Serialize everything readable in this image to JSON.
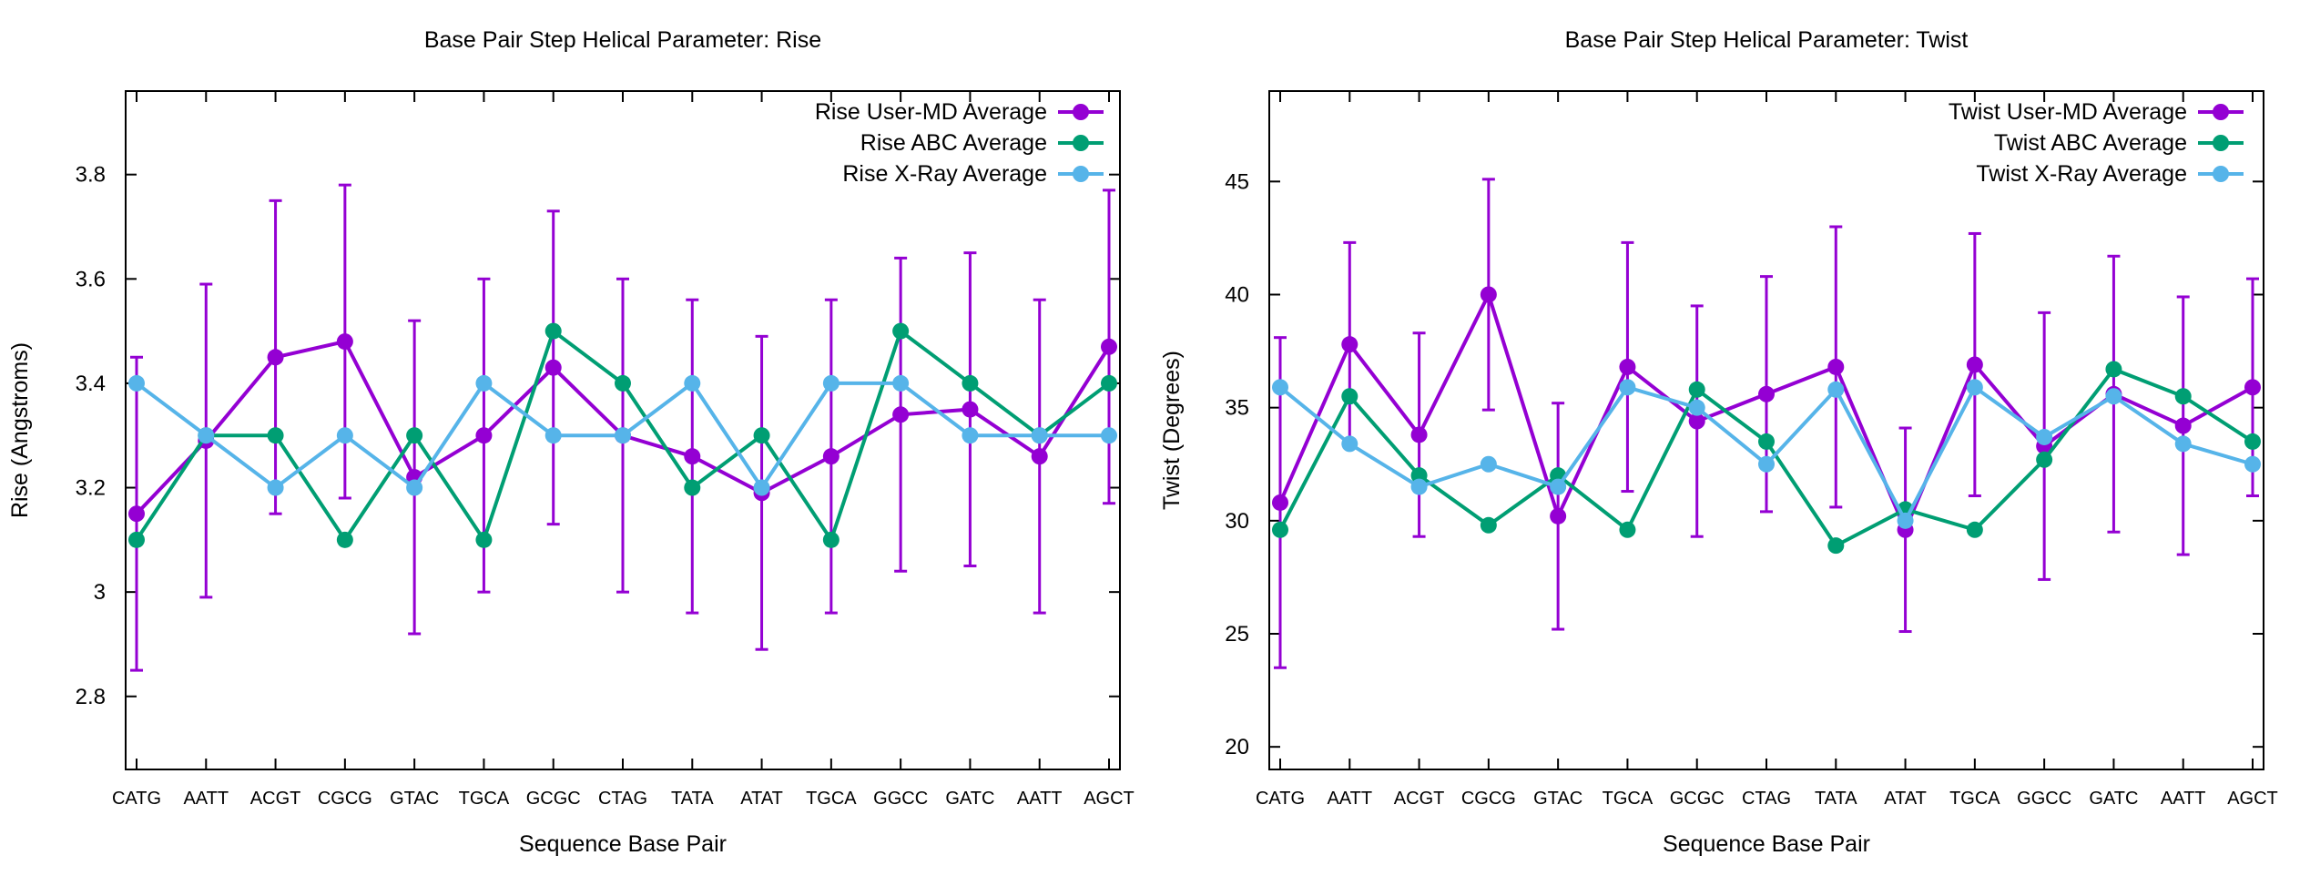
{
  "chart_data": [
    {
      "type": "line",
      "title": "Base Pair Step Helical Parameter: Rise",
      "xlabel": "Sequence Base Pair",
      "ylabel": "Rise (Angstroms)",
      "categories": [
        "CATG",
        "AATT",
        "ACGT",
        "CGCG",
        "GTAC",
        "TGCA",
        "GCGC",
        "CTAG",
        "TATA",
        "ATAT",
        "TGCA",
        "GGCC",
        "GATC",
        "AATT",
        "AGCT"
      ],
      "ylim": [
        2.66,
        3.96
      ],
      "yticks": [
        2.8,
        3,
        3.2,
        3.4,
        3.6,
        3.8
      ],
      "ytick_labels": [
        "2.8",
        "3",
        "3.2",
        "3.4",
        "3.6",
        "3.8"
      ],
      "grid": false,
      "legend_position": "top-right",
      "series": [
        {
          "name": "Rise User-MD Average",
          "color": "#9400d3",
          "values": [
            3.15,
            3.29,
            3.45,
            3.48,
            3.22,
            3.3,
            3.43,
            3.3,
            3.26,
            3.19,
            3.26,
            3.34,
            3.35,
            3.26,
            3.47
          ],
          "error": [
            0.3,
            0.3,
            0.3,
            0.3,
            0.3,
            0.3,
            0.3,
            0.3,
            0.3,
            0.3,
            0.3,
            0.3,
            0.3,
            0.3,
            0.3
          ]
        },
        {
          "name": "Rise ABC Average",
          "color": "#009e73",
          "values": [
            3.1,
            3.3,
            3.3,
            3.1,
            3.3,
            3.1,
            3.5,
            3.4,
            3.2,
            3.3,
            3.1,
            3.5,
            3.4,
            3.3,
            3.4
          ]
        },
        {
          "name": "Rise X-Ray Average",
          "color": "#56b4e9",
          "values": [
            3.4,
            3.3,
            3.2,
            3.3,
            3.2,
            3.4,
            3.3,
            3.3,
            3.4,
            3.2,
            3.4,
            3.4,
            3.3,
            3.3,
            3.3
          ]
        }
      ]
    },
    {
      "type": "line",
      "title": "Base Pair Step Helical Parameter: Twist",
      "xlabel": "Sequence Base Pair",
      "ylabel": "Twist (Degrees)",
      "categories": [
        "CATG",
        "AATT",
        "ACGT",
        "CGCG",
        "GTAC",
        "TGCA",
        "GCGC",
        "CTAG",
        "TATA",
        "ATAT",
        "TGCA",
        "GGCC",
        "GATC",
        "AATT",
        "AGCT"
      ],
      "ylim": [
        19.0,
        49.0
      ],
      "yticks": [
        20,
        25,
        30,
        35,
        40,
        45
      ],
      "ytick_labels": [
        "20",
        "25",
        "30",
        "35",
        "40",
        "45"
      ],
      "grid": false,
      "legend_position": "top-right",
      "series": [
        {
          "name": "Twist User-MD Average",
          "color": "#9400d3",
          "values": [
            30.8,
            37.8,
            33.8,
            40.0,
            30.2,
            36.8,
            34.4,
            35.6,
            36.8,
            29.6,
            36.9,
            33.3,
            35.6,
            34.2,
            35.9
          ],
          "error": [
            7.3,
            4.5,
            4.5,
            5.1,
            5.0,
            5.5,
            5.1,
            5.2,
            6.2,
            4.5,
            5.8,
            5.9,
            6.1,
            5.7,
            4.8
          ]
        },
        {
          "name": "Twist ABC Average",
          "color": "#009e73",
          "values": [
            29.6,
            35.5,
            32.0,
            29.8,
            32.0,
            29.6,
            35.8,
            33.5,
            28.9,
            30.5,
            29.6,
            32.7,
            36.7,
            35.5,
            33.5
          ]
        },
        {
          "name": "Twist X-Ray Average",
          "color": "#56b4e9",
          "values": [
            35.9,
            33.4,
            31.5,
            32.5,
            31.5,
            35.9,
            35.0,
            32.5,
            35.8,
            30.0,
            35.9,
            33.7,
            35.5,
            33.4,
            32.5
          ]
        }
      ]
    }
  ]
}
